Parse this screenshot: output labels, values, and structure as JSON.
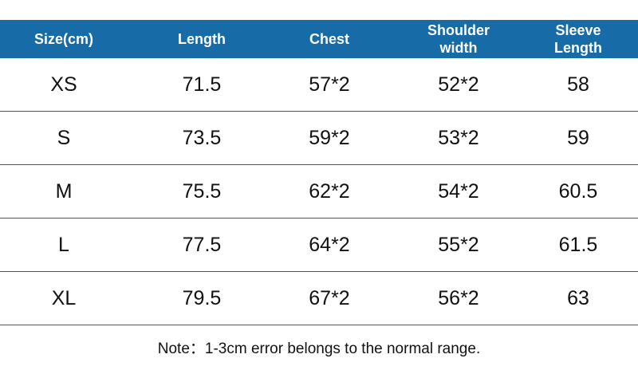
{
  "table": {
    "header": [
      "Size(cm)",
      "Length",
      "Chest",
      "Shoulder width",
      "Sleeve Length"
    ],
    "rows": [
      [
        "XS",
        "71.5",
        "57*2",
        "52*2",
        "58"
      ],
      [
        "S",
        "73.5",
        "59*2",
        "53*2",
        "59"
      ],
      [
        "M",
        "75.5",
        "62*2",
        "54*2",
        "60.5"
      ],
      [
        "L",
        "77.5",
        "64*2",
        "55*2",
        "61.5"
      ],
      [
        "XL",
        "79.5",
        "67*2",
        "56*2",
        "63"
      ]
    ]
  },
  "note": "Note：1-3cm error belongs to the normal range."
}
